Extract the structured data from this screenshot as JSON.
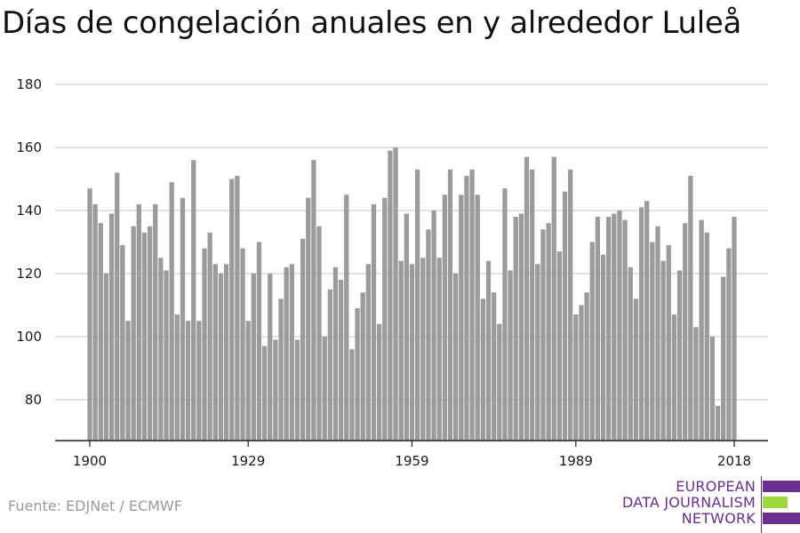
{
  "title": "Días de congelación anuales en y alrededor Luleå",
  "source": "Fuente: EDJNet / ECMWF",
  "logo": {
    "lines": [
      "EUROPEAN",
      "DATA JOURNALISM",
      "NETWORK"
    ],
    "colors": {
      "purple": "#6b2f8e",
      "green": "#9dd73b"
    }
  },
  "colors": {
    "bar": "#9b9b9b",
    "grid": "#d9d9d9",
    "axis": "#222222"
  },
  "chart_data": {
    "type": "bar",
    "title": "Días de congelación anuales en y alrededor Luleå",
    "xlabel": "",
    "ylabel": "",
    "x_ticks": [
      "1900",
      "1929",
      "1959",
      "1989",
      "2018"
    ],
    "y_ticks": [
      80,
      100,
      120,
      140,
      160,
      180
    ],
    "ylim": [
      67,
      180
    ],
    "grid": true,
    "x": [
      1900,
      1901,
      1902,
      1903,
      1904,
      1905,
      1906,
      1907,
      1908,
      1909,
      1910,
      1911,
      1912,
      1913,
      1914,
      1915,
      1916,
      1917,
      1918,
      1919,
      1920,
      1921,
      1922,
      1923,
      1924,
      1925,
      1926,
      1927,
      1928,
      1929,
      1930,
      1931,
      1932,
      1933,
      1934,
      1935,
      1936,
      1937,
      1938,
      1939,
      1940,
      1941,
      1942,
      1943,
      1944,
      1945,
      1946,
      1947,
      1948,
      1949,
      1950,
      1951,
      1952,
      1953,
      1954,
      1955,
      1956,
      1957,
      1958,
      1959,
      1960,
      1961,
      1962,
      1963,
      1964,
      1965,
      1966,
      1967,
      1968,
      1969,
      1970,
      1971,
      1972,
      1973,
      1974,
      1975,
      1976,
      1977,
      1978,
      1979,
      1980,
      1981,
      1982,
      1983,
      1984,
      1985,
      1986,
      1987,
      1988,
      1989,
      1990,
      1991,
      1992,
      1993,
      1994,
      1995,
      1996,
      1997,
      1998,
      1999,
      2000,
      2001,
      2002,
      2003,
      2004,
      2005,
      2006,
      2007,
      2008,
      2009,
      2010,
      2011,
      2012,
      2013,
      2014,
      2015,
      2016,
      2017,
      2018
    ],
    "values": [
      147,
      142,
      136,
      120,
      139,
      152,
      129,
      105,
      135,
      142,
      133,
      135,
      142,
      125,
      121,
      149,
      107,
      144,
      105,
      156,
      105,
      128,
      133,
      123,
      120,
      123,
      150,
      151,
      128,
      105,
      120,
      130,
      97,
      120,
      99,
      112,
      122,
      123,
      99,
      131,
      144,
      156,
      135,
      100,
      115,
      122,
      118,
      145,
      96,
      109,
      114,
      123,
      142,
      104,
      144,
      159,
      160,
      124,
      139,
      123,
      153,
      125,
      134,
      140,
      125,
      145,
      153,
      120,
      145,
      151,
      153,
      145,
      112,
      124,
      114,
      104,
      147,
      121,
      138,
      139,
      157,
      153,
      123,
      134,
      136,
      157,
      127,
      146,
      153,
      107,
      110,
      114,
      130,
      138,
      126,
      138,
      139,
      140,
      137,
      122,
      112,
      141,
      143,
      130,
      135,
      124,
      129,
      107,
      121,
      136,
      151,
      103,
      137,
      133,
      100,
      78,
      119,
      128,
      138
    ]
  }
}
